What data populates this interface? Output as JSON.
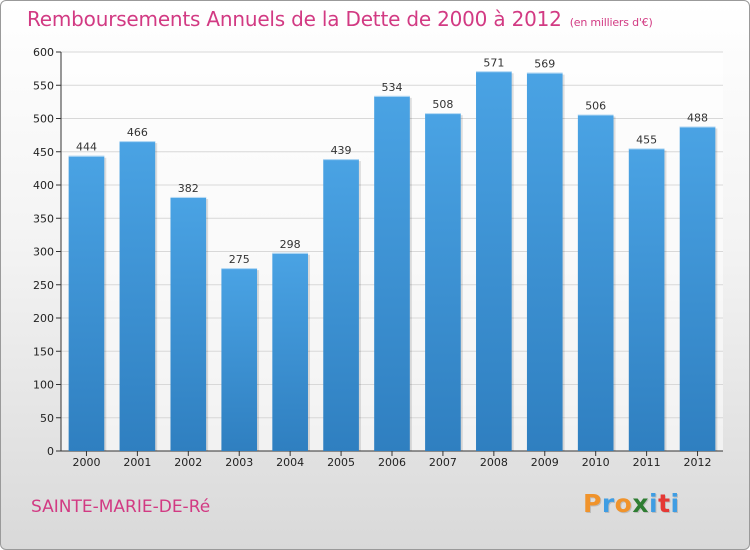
{
  "chart_data": {
    "type": "bar",
    "title": "Remboursements Annuels de la Dette de 2000 à 2012",
    "unit_note": "(en milliers d'€)",
    "categories": [
      "2000",
      "2001",
      "2002",
      "2003",
      "2004",
      "2005",
      "2006",
      "2007",
      "2008",
      "2009",
      "2010",
      "2011",
      "2012"
    ],
    "values": [
      444,
      466,
      382,
      275,
      298,
      439,
      534,
      508,
      571,
      569,
      506,
      455,
      488
    ],
    "ylim": [
      0,
      600
    ],
    "yticks": [
      0,
      50,
      100,
      150,
      200,
      250,
      300,
      350,
      400,
      450,
      500,
      550,
      600
    ],
    "grid": true,
    "bar_color": "#4aa3e4",
    "bar_color_dark": "#2f7fc0"
  },
  "footer": {
    "city": "SAINTE-MARIE-DE-Ré",
    "logo_letters": [
      "P",
      "r",
      "o",
      "x",
      "i",
      "t",
      "i"
    ],
    "logo_colors": [
      "#f0932b",
      "#3f9de3",
      "#f0932b",
      "#2e7d32",
      "#3f9de3",
      "#e53935",
      "#3f9de3"
    ]
  },
  "colors": {
    "accent": "#d23a83",
    "grid": "#d8d8d8"
  }
}
